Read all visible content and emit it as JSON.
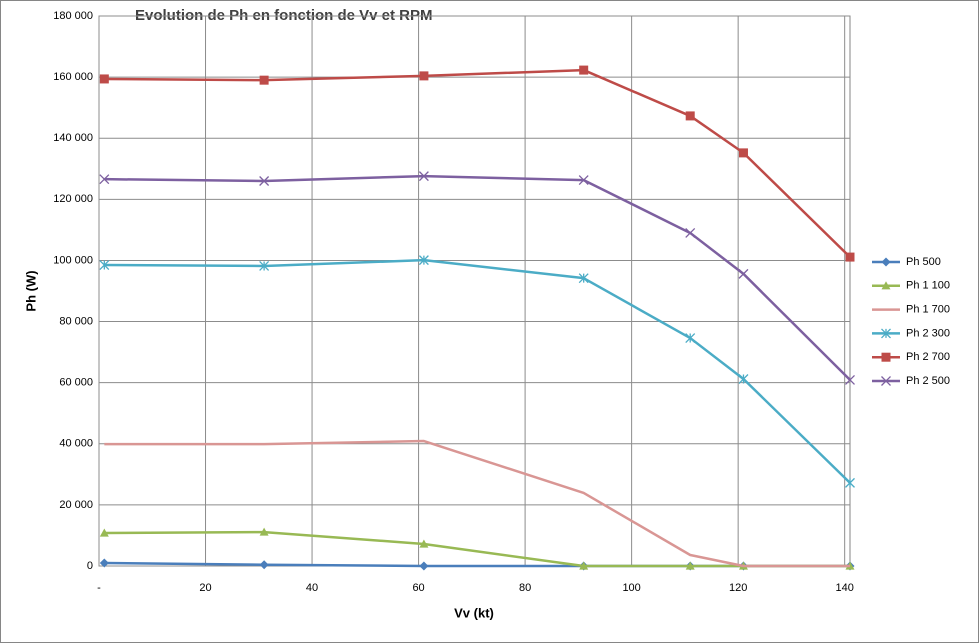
{
  "chart_data": {
    "type": "line",
    "title": "Evolution de Ph en fonction de Vv et RPM",
    "x_label": "Vv (kt)",
    "y_label": "Ph (W)",
    "x": [
      1,
      31,
      61,
      91,
      111,
      121,
      141
    ],
    "xlim": [
      0,
      141
    ],
    "xticks": [
      {
        "value": 0,
        "label": "-"
      },
      20,
      40,
      60,
      80,
      100,
      120,
      140
    ],
    "ylim": [
      0,
      180000
    ],
    "yticks": [
      {
        "value": 0,
        "label": "0"
      },
      {
        "value": 20000,
        "label": "20 000"
      },
      {
        "value": 40000,
        "label": "40 000"
      },
      {
        "value": 60000,
        "label": "60 000"
      },
      {
        "value": 80000,
        "label": "80 000"
      },
      {
        "value": 100000,
        "label": "100 000"
      },
      {
        "value": 120000,
        "label": "120 000"
      },
      {
        "value": 140000,
        "label": "140 000"
      },
      {
        "value": 160000,
        "label": "160 000"
      },
      {
        "value": 180000,
        "label": "180 000"
      }
    ],
    "grid": true,
    "legend": "right",
    "series": [
      {
        "name": "Ph 500",
        "color": "#4a7ebb",
        "marker": "diamond",
        "values": [
          1000,
          400,
          0,
          0,
          0,
          0,
          0
        ]
      },
      {
        "name": "Ph 1 100",
        "color": "#98b954",
        "marker": "triangle",
        "values": [
          10800,
          11100,
          7200,
          0,
          0,
          0,
          0
        ]
      },
      {
        "name": "Ph 1 700",
        "color": "#d99694",
        "marker": "none",
        "values": [
          39900,
          39900,
          40900,
          23900,
          3600,
          0,
          0
        ]
      },
      {
        "name": "Ph 2 300",
        "color": "#4bacc6",
        "marker": "star",
        "values": [
          98500,
          98200,
          100100,
          94200,
          74600,
          61200,
          27200
        ]
      },
      {
        "name": "Ph 2 700",
        "color": "#be4b48",
        "marker": "square",
        "values": [
          159400,
          159000,
          160400,
          162300,
          147300,
          135200,
          101100
        ]
      },
      {
        "name": "Ph 2 500",
        "color": "#7d60a0",
        "marker": "x",
        "values": [
          126600,
          126000,
          127600,
          126300,
          109000,
          95600,
          60900
        ]
      }
    ]
  }
}
